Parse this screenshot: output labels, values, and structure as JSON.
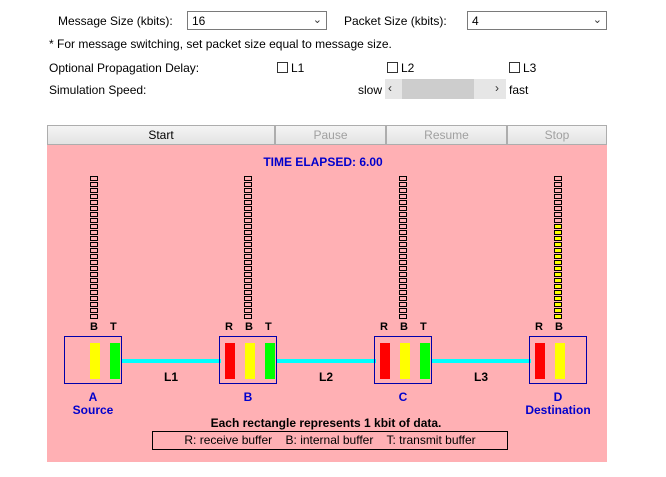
{
  "controls": {
    "message_size_label": "Message Size (kbits):",
    "message_size_value": "16",
    "packet_size_label": "Packet Size (kbits):",
    "packet_size_value": "4",
    "note": "* For message switching, set packet size equal to message size.",
    "propagation_label": "Optional Propagation Delay:",
    "links": [
      {
        "label": "L1",
        "checked": false
      },
      {
        "label": "L2",
        "checked": false
      },
      {
        "label": "L3",
        "checked": false
      }
    ],
    "speed_label": "Simulation Speed:",
    "speed_slow": "slow",
    "speed_fast": "fast"
  },
  "buttons": {
    "start": "Start",
    "pause": "Pause",
    "resume": "Resume",
    "stop": "Stop"
  },
  "simulation": {
    "time_elapsed": "TIME ELAPSED: 6.00",
    "link_labels": [
      "L1",
      "L2",
      "L3"
    ],
    "nodes": [
      {
        "letter": "A",
        "role": "Source",
        "buffer_labels": [
          "B",
          "T"
        ]
      },
      {
        "letter": "B",
        "role": "",
        "buffer_labels": [
          "R",
          "B",
          "T"
        ]
      },
      {
        "letter": "C",
        "role": "",
        "buffer_labels": [
          "R",
          "B",
          "T"
        ]
      },
      {
        "letter": "D",
        "role": "Destination",
        "buffer_labels": [
          "R",
          "B"
        ]
      }
    ],
    "queue_filled_kbits": [
      0,
      0,
      0,
      16
    ],
    "caption": "Each rectangle represents 1 kbit of data.",
    "legend": "R: receive buffer    B: internal buffer    T: transmit buffer"
  },
  "colors": {
    "receive_buffer": "#ff0000",
    "internal_buffer": "#ffff00",
    "transmit_buffer": "#00ff00",
    "link": "#00ffff",
    "canvas": "#ffb0b4",
    "title_blue": "#0000cc"
  }
}
